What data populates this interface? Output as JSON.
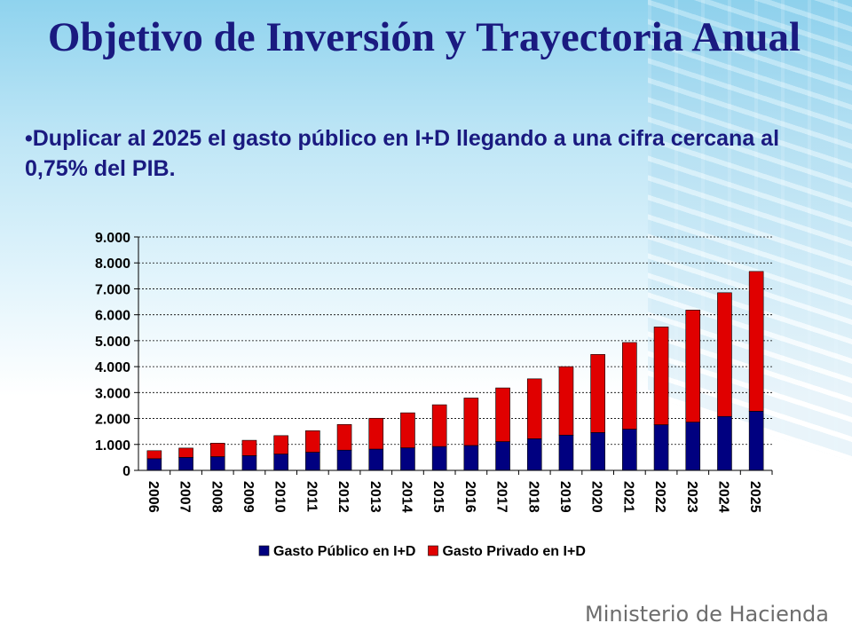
{
  "slide": {
    "title": "Objetivo de Inversión y Trayectoria Anual",
    "bullet": "•Duplicar al 2025 el gasto público en I+D llegando a una cifra cercana al 0,75% del PIB.",
    "footer": "Ministerio de Hacienda"
  },
  "chart_data": {
    "type": "bar",
    "stacked": true,
    "title": "",
    "xlabel": "",
    "ylabel": "",
    "categories": [
      "2006",
      "2007",
      "2008",
      "2009",
      "2010",
      "2011",
      "2012",
      "2013",
      "2014",
      "2015",
      "2016",
      "2017",
      "2018",
      "2019",
      "2020",
      "2021",
      "2022",
      "2023",
      "2024",
      "2025"
    ],
    "series": [
      {
        "name": "Gasto Público en I+D",
        "color": "#000080",
        "values": [
          450,
          500,
          530,
          570,
          630,
          700,
          780,
          820,
          870,
          920,
          960,
          1110,
          1220,
          1360,
          1460,
          1590,
          1760,
          1860,
          2080,
          2280
        ]
      },
      {
        "name": "Gasto Privado en I+D",
        "color": "#e00000",
        "values": [
          310,
          360,
          520,
          590,
          710,
          830,
          990,
          1190,
          1350,
          1610,
          1830,
          2070,
          2310,
          2640,
          3010,
          3340,
          3770,
          4320,
          4770,
          5390
        ]
      }
    ],
    "ylim": [
      0,
      9000
    ],
    "yticks": [
      0,
      1000,
      2000,
      3000,
      4000,
      5000,
      6000,
      7000,
      8000,
      9000
    ],
    "ytick_labels": [
      "0",
      "1.000",
      "2.000",
      "3.000",
      "4.000",
      "5.000",
      "6.000",
      "7.000",
      "8.000",
      "9.000"
    ],
    "grid": true,
    "legend": "bottom"
  }
}
